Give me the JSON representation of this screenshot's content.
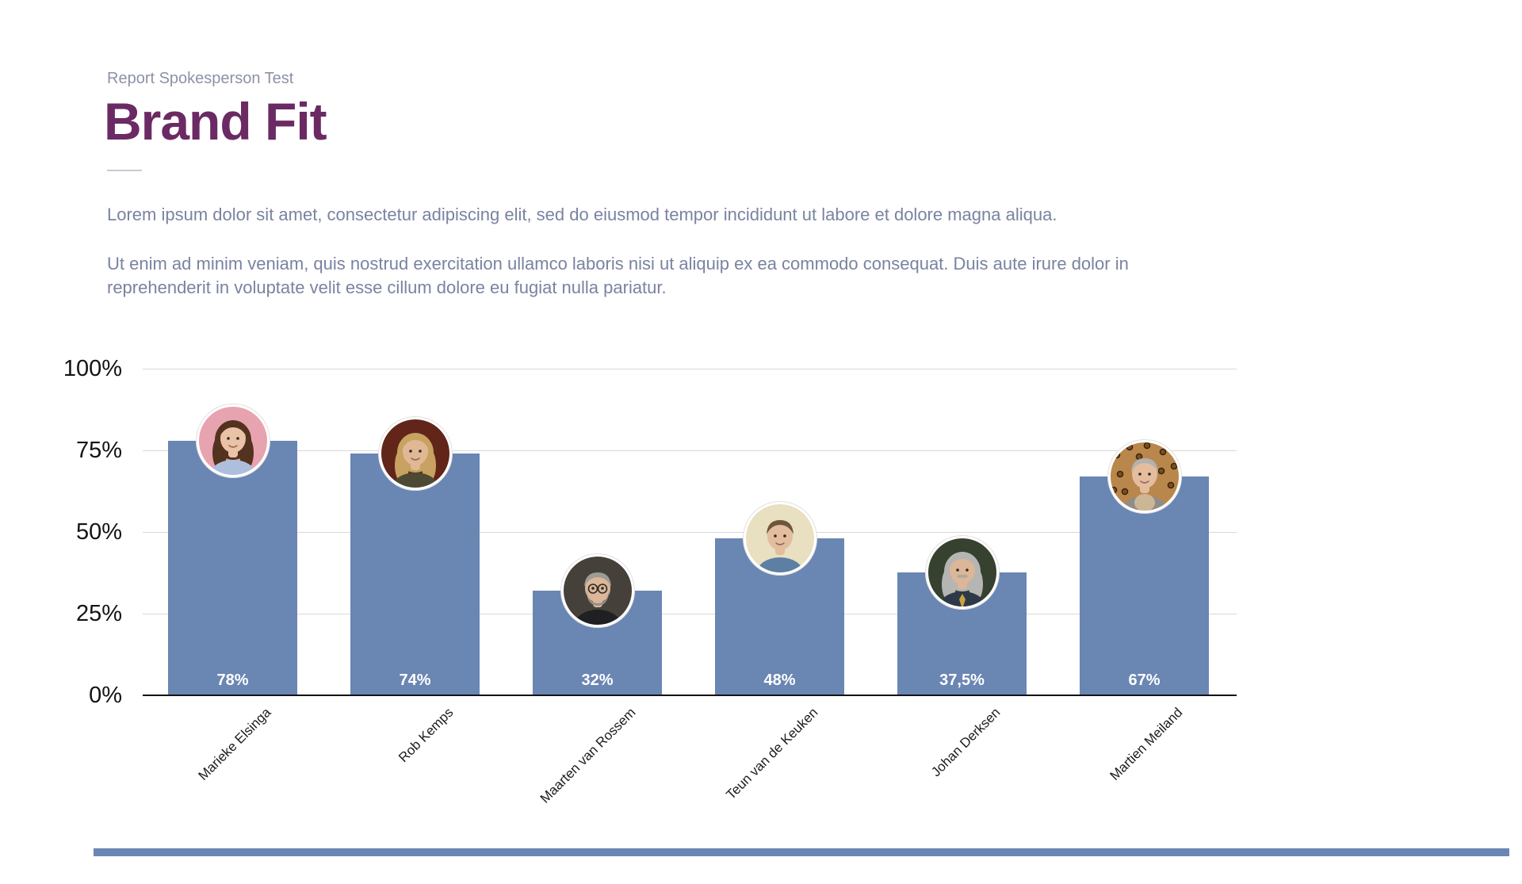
{
  "page": {
    "eyebrow": "Report Spokesperson Test",
    "title": "Brand Fit",
    "paragraphs": [
      "Lorem ipsum dolor sit amet, consectetur adipiscing elit, sed do eiusmod tempor incididunt ut labore et dolore magna aliqua.",
      "Ut enim ad minim veniam, quis nostrud exercitation ullamco laboris nisi ut aliquip ex ea commodo consequat. Duis aute irure dolor in reprehenderit in voluptate velit esse cillum dolore eu fugiat nulla pariatur."
    ]
  },
  "colors": {
    "title": "#6b2a64",
    "eyebrow": "#8d92a6",
    "body_text": "#7a83a0",
    "bar": "#6a86b3",
    "gridline": "#d9d9d9",
    "axis_line": "#141414",
    "value_label": "#ffffff",
    "footer_accent": "#6a86b3"
  },
  "chart_data": {
    "type": "bar",
    "title": "Brand Fit",
    "categories": [
      "Marieke Elsinga",
      "Rob Kemps",
      "Maarten van Rossem",
      "Teun van de Keuken",
      "Johan Derksen",
      "Martien Meiland"
    ],
    "values": [
      78,
      74,
      32,
      48,
      37.5,
      67
    ],
    "value_labels": [
      "78%",
      "74%",
      "32%",
      "48%",
      "37,5%",
      "67%"
    ],
    "y_ticks": [
      "100%",
      "75%",
      "50%",
      "25%",
      "0%"
    ],
    "ylim": [
      0,
      100
    ],
    "grid": true,
    "legend": "none",
    "xlabel": "",
    "ylabel": "",
    "bar_color": "#6a86b3",
    "avatars": [
      {
        "name": "avatar-marieke-elsinga",
        "bg": "#e8a3b0",
        "hair": "#53331f",
        "skin": "#eac3a6",
        "shirt": "#aebfdd",
        "style": "long"
      },
      {
        "name": "avatar-rob-kemps",
        "bg": "#62251a",
        "hair": "#c8a260",
        "skin": "#e0b896",
        "shirt": "#4c4a33",
        "style": "long"
      },
      {
        "name": "avatar-maarten-van-rossem",
        "bg": "#45403a",
        "hair": "#9b9b98",
        "skin": "#dcb697",
        "shirt": "#202022",
        "style": "short",
        "glasses": true,
        "beard": "#93918c"
      },
      {
        "name": "avatar-teun-van-de-keuken",
        "bg": "#e9dfc1",
        "hair": "#6d563c",
        "skin": "#e4bc9e",
        "shirt": "#5d7fa3",
        "style": "short"
      },
      {
        "name": "avatar-johan-derksen",
        "bg": "#364130",
        "hair": "#b5b5b3",
        "skin": "#dcb697",
        "shirt": "#2d3947",
        "style": "long",
        "mustache": "#aaa9a5",
        "tie": "#c9a23d"
      },
      {
        "name": "avatar-martien-meiland",
        "bg": "#b9874b",
        "hair": "#b2b2ae",
        "skin": "#e4bc9e",
        "shirt": "#8f8c88",
        "style": "short",
        "leopard": true,
        "scarf": "#cdb694"
      }
    ]
  }
}
